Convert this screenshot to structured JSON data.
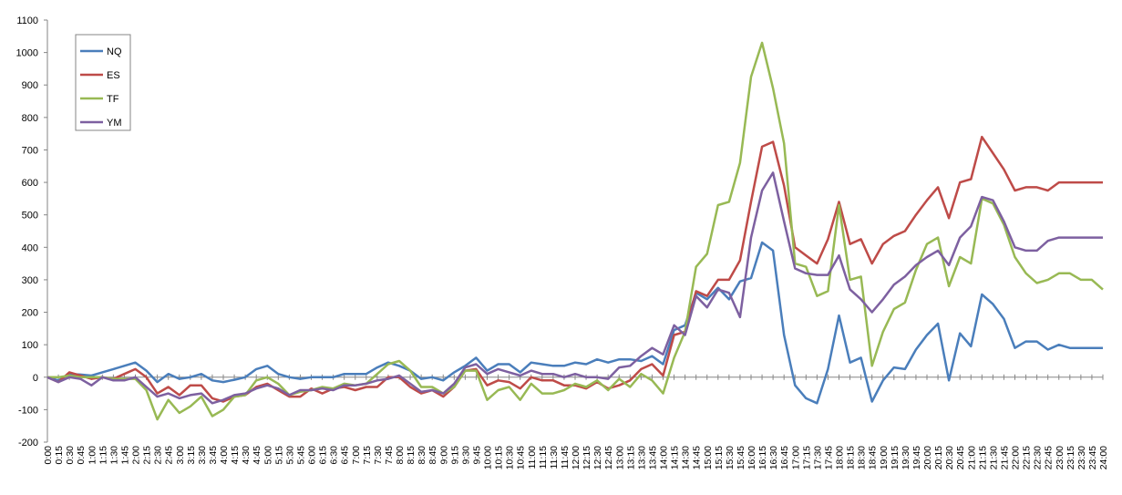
{
  "chart_data": {
    "type": "line",
    "categories": [
      "0:00",
      "0:15",
      "0:30",
      "0:45",
      "1:00",
      "1:15",
      "1:30",
      "1:45",
      "2:00",
      "2:15",
      "2:30",
      "2:45",
      "3:00",
      "3:15",
      "3:30",
      "3:45",
      "4:00",
      "4:15",
      "4:30",
      "4:45",
      "5:00",
      "5:15",
      "5:30",
      "5:45",
      "6:00",
      "6:15",
      "6:30",
      "6:45",
      "7:00",
      "7:15",
      "7:30",
      "7:45",
      "8:00",
      "8:15",
      "8:30",
      "8:45",
      "9:00",
      "9:15",
      "9:30",
      "9:45",
      "10:00",
      "10:15",
      "10:30",
      "10:45",
      "11:00",
      "11:15",
      "11:30",
      "11:45",
      "12:00",
      "12:15",
      "12:30",
      "12:45",
      "13:00",
      "13:15",
      "13:30",
      "13:45",
      "14:00",
      "14:15",
      "14:30",
      "14:45",
      "15:00",
      "15:15",
      "15:30",
      "15:45",
      "16:00",
      "16:15",
      "16:30",
      "16:45",
      "17:00",
      "17:15",
      "17:30",
      "17:45",
      "18:00",
      "18:15",
      "18:30",
      "18:45",
      "19:00",
      "19:15",
      "19:30",
      "19:45",
      "20:00",
      "20:15",
      "20:30",
      "20:45",
      "21:00",
      "21:15",
      "21:30",
      "21:45",
      "22:00",
      "22:15",
      "22:30",
      "22:45",
      "23:00",
      "23:15",
      "23:30",
      "23:45",
      "24:00"
    ],
    "series": [
      {
        "name": "NQ",
        "color": "#4a7ebb",
        "values": [
          0,
          -10,
          10,
          8,
          5,
          15,
          25,
          35,
          45,
          20,
          -15,
          10,
          -5,
          0,
          10,
          -10,
          -15,
          -8,
          0,
          25,
          35,
          10,
          0,
          -5,
          0,
          0,
          0,
          10,
          10,
          10,
          30,
          45,
          35,
          20,
          -5,
          0,
          -10,
          15,
          35,
          60,
          20,
          40,
          40,
          15,
          45,
          40,
          35,
          35,
          45,
          40,
          55,
          45,
          55,
          55,
          50,
          65,
          40,
          145,
          160,
          260,
          240,
          275,
          240,
          295,
          305,
          415,
          390,
          130,
          -25,
          -65,
          -80,
          25,
          190,
          45,
          60,
          -75,
          -10,
          30,
          25,
          85,
          130,
          165,
          -10,
          135,
          95,
          255,
          225,
          180,
          90,
          110,
          110,
          85,
          100,
          90,
          90,
          90,
          90
        ]
      },
      {
        "name": "ES",
        "color": "#be4b48",
        "values": [
          0,
          -15,
          15,
          5,
          -5,
          0,
          -5,
          10,
          25,
          0,
          -50,
          -30,
          -55,
          -25,
          -25,
          -65,
          -75,
          -60,
          -55,
          -30,
          -20,
          -40,
          -60,
          -60,
          -35,
          -50,
          -35,
          -30,
          -40,
          -30,
          -30,
          0,
          0,
          -30,
          -50,
          -40,
          -60,
          -30,
          20,
          25,
          -25,
          -10,
          -15,
          -35,
          0,
          -10,
          -10,
          -25,
          -25,
          -35,
          -15,
          -35,
          -25,
          -10,
          25,
          40,
          5,
          130,
          140,
          265,
          250,
          300,
          300,
          360,
          540,
          710,
          725,
          590,
          400,
          375,
          350,
          425,
          540,
          410,
          425,
          350,
          410,
          435,
          450,
          500,
          545,
          585,
          490,
          600,
          610,
          740,
          690,
          640,
          575,
          585,
          585,
          575,
          600,
          600,
          600,
          600,
          600
        ]
      },
      {
        "name": "TF",
        "color": "#98b954",
        "values": [
          0,
          0,
          5,
          0,
          0,
          0,
          -5,
          -5,
          -5,
          -40,
          -130,
          -70,
          -110,
          -90,
          -60,
          -120,
          -100,
          -60,
          -55,
          -10,
          0,
          -20,
          -55,
          -45,
          -40,
          -30,
          -35,
          -20,
          -25,
          -20,
          10,
          40,
          50,
          20,
          -30,
          -30,
          -50,
          -30,
          20,
          20,
          -70,
          -40,
          -30,
          -70,
          -20,
          -50,
          -50,
          -40,
          -20,
          -30,
          -10,
          -40,
          -5,
          -30,
          10,
          -10,
          -50,
          60,
          140,
          340,
          380,
          530,
          540,
          660,
          925,
          1030,
          890,
          720,
          350,
          340,
          250,
          265,
          530,
          300,
          310,
          35,
          140,
          210,
          230,
          330,
          410,
          430,
          280,
          370,
          350,
          550,
          535,
          470,
          370,
          320,
          290,
          300,
          320,
          320,
          300,
          300,
          270
        ]
      },
      {
        "name": "YM",
        "color": "#7d60a0",
        "values": [
          0,
          -15,
          0,
          -5,
          -25,
          0,
          -10,
          -10,
          0,
          -30,
          -60,
          -50,
          -65,
          -55,
          -50,
          -80,
          -70,
          -55,
          -50,
          -35,
          -25,
          -35,
          -55,
          -40,
          -40,
          -35,
          -40,
          -25,
          -25,
          -20,
          -10,
          -5,
          5,
          -20,
          -45,
          -40,
          -50,
          -20,
          30,
          40,
          10,
          25,
          15,
          5,
          20,
          10,
          10,
          0,
          10,
          0,
          0,
          -5,
          30,
          35,
          65,
          90,
          70,
          160,
          130,
          250,
          215,
          270,
          260,
          185,
          430,
          575,
          630,
          480,
          335,
          320,
          315,
          315,
          375,
          270,
          240,
          200,
          240,
          285,
          310,
          345,
          370,
          390,
          345,
          430,
          465,
          555,
          545,
          480,
          400,
          390,
          390,
          420,
          430,
          430,
          430,
          430,
          430
        ]
      }
    ],
    "ylim": [
      -200,
      1100
    ],
    "yticks": [
      -200,
      -100,
      0,
      100,
      200,
      300,
      400,
      500,
      600,
      700,
      800,
      900,
      1000,
      1100
    ],
    "grid": false,
    "legend": "top-left"
  }
}
